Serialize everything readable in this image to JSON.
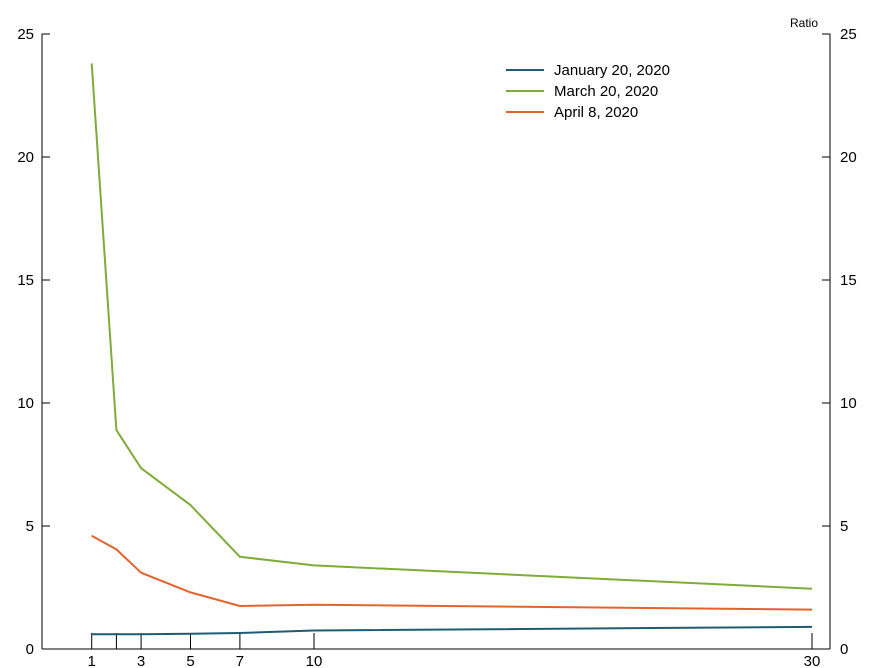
{
  "chart_data": {
    "type": "line",
    "y_unit_label": "Ratio",
    "x": [
      1,
      2,
      3,
      5,
      7,
      10,
      30
    ],
    "x_ticks": [
      1,
      2,
      3,
      5,
      7,
      10,
      30
    ],
    "x_tick_labels": [
      "1",
      "3",
      "5",
      "7",
      "10",
      "30"
    ],
    "x_tick_label_values": [
      1,
      3,
      5,
      7,
      10,
      30
    ],
    "ylim": [
      0,
      25
    ],
    "y_ticks": [
      0,
      5,
      10,
      15,
      20,
      25
    ],
    "y_tick_labels": [
      "0",
      "5",
      "10",
      "15",
      "20",
      "25"
    ],
    "grid": false,
    "legend_position": "top-right",
    "series": [
      {
        "name": "January 20, 2020",
        "color": "#1f5c73",
        "values": [
          0.6,
          0.6,
          0.6,
          0.62,
          0.65,
          0.75,
          0.9
        ]
      },
      {
        "name": "March 20, 2020",
        "color": "#7fab3a",
        "values": [
          23.8,
          8.9,
          7.35,
          5.85,
          3.75,
          3.4,
          2.45
        ]
      },
      {
        "name": "April 8, 2020",
        "color": "#e3632d",
        "values": [
          4.6,
          4.05,
          3.1,
          2.3,
          1.75,
          1.8,
          1.6
        ]
      }
    ]
  }
}
